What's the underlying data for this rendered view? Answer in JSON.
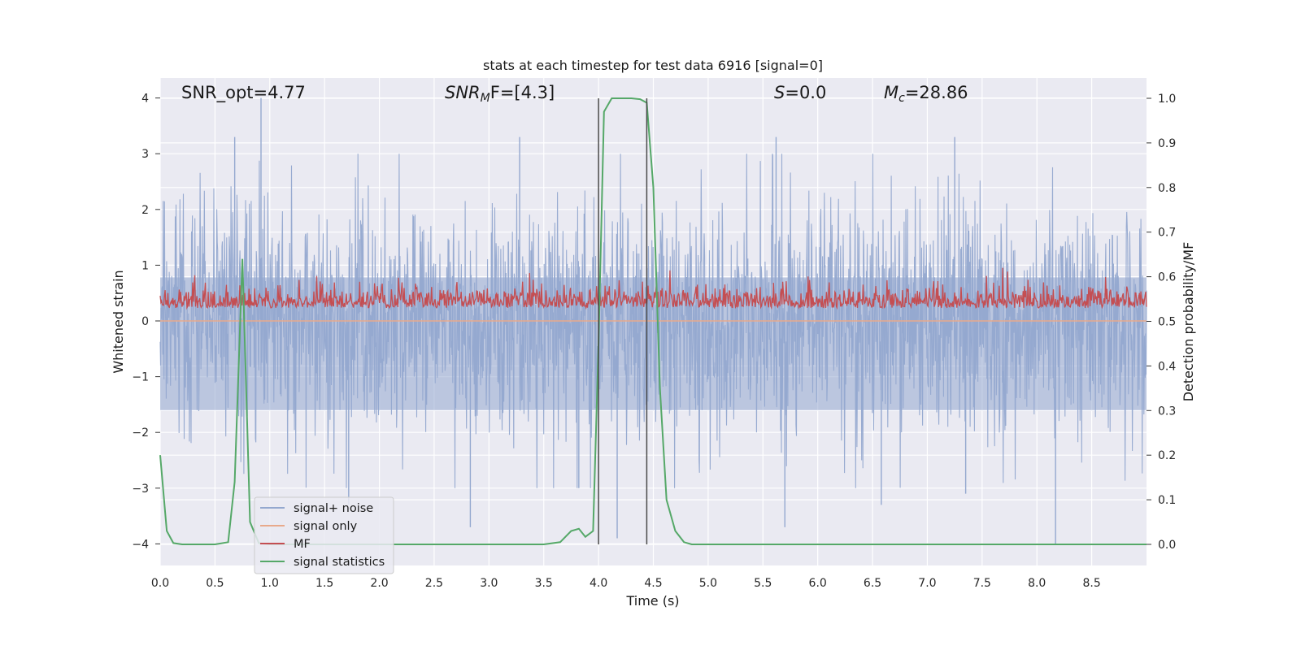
{
  "chart_data": {
    "type": "line",
    "title": "stats at each timestep for test data 6916 [signal=0]",
    "xlabel": "Time (s)",
    "ylabel_left": "Whitened strain",
    "ylabel_right": "Detection probability/MF",
    "xlim": [
      0,
      9.0
    ],
    "ylim_left": [
      -4.4,
      4.4
    ],
    "ylim_right": [
      -0.05,
      1.05
    ],
    "xticks": [
      "0.0",
      "0.5",
      "1.0",
      "1.5",
      "2.0",
      "2.5",
      "3.0",
      "3.5",
      "4.0",
      "4.5",
      "5.0",
      "5.5",
      "6.0",
      "6.5",
      "7.0",
      "7.5",
      "8.0",
      "8.5"
    ],
    "yticks_left": [
      "4",
      "3",
      "2",
      "1",
      "0",
      "−1",
      "−2",
      "−3",
      "−4"
    ],
    "yticks_right": [
      "1.0",
      "0.9",
      "0.8",
      "0.7",
      "0.6",
      "0.5",
      "0.4",
      "0.3",
      "0.2",
      "0.1",
      "0.0"
    ],
    "grid": true,
    "legend_position": "lower-left",
    "annotations": {
      "snr_opt": "SNR_opt=4.77",
      "snr_mf_main": "SNR",
      "snr_mf_sub": "M",
      "snr_mf_rest": "F=[4.3]",
      "s_main": "S",
      "s_rest": "=0.0",
      "mc_main": "M",
      "mc_sub": "c",
      "mc_rest": "=28.86"
    },
    "vlines_x": [
      4.0,
      4.44
    ],
    "series": [
      {
        "name": "signal+ noise",
        "color": "#94a8cf",
        "axis": "left",
        "description_of_values": "dense whitened noise samples filling roughly -2 to 2, spikes up to 4 and down to -4",
        "envelope_typical": [
          -2.2,
          2.2
        ],
        "spikes": [
          [
            0.92,
            4.0
          ],
          [
            0.68,
            3.3
          ],
          [
            3.28,
            3.3
          ],
          [
            5.62,
            3.3
          ],
          [
            7.25,
            3.3
          ],
          [
            8.17,
            -4.0
          ],
          [
            1.72,
            -3.3
          ],
          [
            2.83,
            -3.7
          ],
          [
            4.17,
            -3.9
          ],
          [
            5.7,
            -3.7
          ],
          [
            6.58,
            -3.3
          ],
          [
            7.35,
            -3.1
          ],
          [
            3.82,
            -3.0
          ]
        ]
      },
      {
        "name": "signal only",
        "color": "#e8a98b",
        "axis": "left",
        "values_note": "flat at 0"
      },
      {
        "name": "MF",
        "color": "#c44e52",
        "axis": "right",
        "range": [
          0.5,
          0.62
        ],
        "mean": 0.53
      },
      {
        "name": "signal statistics",
        "color": "#55a868",
        "axis": "right",
        "x": [
          0.0,
          0.06,
          0.12,
          0.2,
          0.3,
          0.5,
          0.62,
          0.68,
          0.75,
          0.82,
          0.9,
          1.0,
          3.5,
          3.65,
          3.75,
          3.82,
          3.88,
          3.95,
          4.0,
          4.05,
          4.12,
          4.2,
          4.3,
          4.38,
          4.44,
          4.5,
          4.56,
          4.62,
          4.7,
          4.78,
          4.85,
          5.0,
          9.0
        ],
        "y": [
          0.2,
          0.03,
          0.003,
          0.0,
          0.0,
          0.0,
          0.005,
          0.14,
          0.64,
          0.05,
          0.003,
          0.0,
          0.0,
          0.005,
          0.03,
          0.035,
          0.017,
          0.03,
          0.45,
          0.97,
          1.0,
          1.0,
          1.0,
          0.998,
          0.99,
          0.8,
          0.35,
          0.1,
          0.03,
          0.005,
          0.0,
          0.0,
          0.0
        ]
      }
    ]
  }
}
